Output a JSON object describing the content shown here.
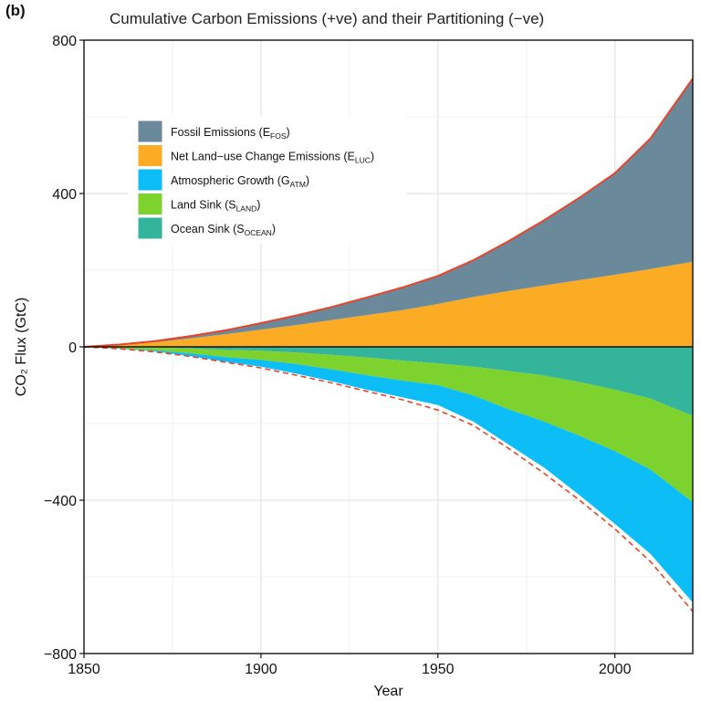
{
  "panel_label": "(b)",
  "chart_data": {
    "type": "area",
    "title": "Cumulative Carbon Emissions (+ve) and their Partitioning (−ve)",
    "xlabel": "Year",
    "ylabel": "CO₂ Flux (GtC)",
    "xlim": [
      1850,
      2022
    ],
    "ylim": [
      -800,
      800
    ],
    "x_ticks": [
      1850,
      1900,
      1950,
      2000
    ],
    "y_ticks": [
      -800,
      -400,
      0,
      400,
      800
    ],
    "y_tick_labels": [
      "−800",
      "−400",
      "0",
      "400",
      "800"
    ],
    "grid": true,
    "legend_position": "top-left",
    "x": [
      1850,
      1860,
      1870,
      1880,
      1890,
      1900,
      1910,
      1920,
      1930,
      1940,
      1950,
      1960,
      1970,
      1980,
      1990,
      2000,
      2010,
      2022
    ],
    "series": [
      {
        "name": "Fossil Emissions (E",
        "sub": "FOS",
        "suffix": ")",
        "color": "#6a8a9c",
        "side": "positive",
        "values": [
          0,
          1,
          3,
          6,
          10,
          17,
          25,
          34,
          46,
          59,
          73,
          96,
          130,
          170,
          215,
          265,
          340,
          478
        ]
      },
      {
        "name": "Net Land−use Change Emissions (E",
        "sub": "LUC",
        "suffix": ")",
        "color": "#fbab24",
        "side": "positive",
        "values": [
          0,
          5,
          12,
          22,
          33,
          45,
          57,
          70,
          83,
          96,
          112,
          130,
          146,
          160,
          174,
          188,
          203,
          222
        ]
      },
      {
        "name": "Atmospheric Growth (G",
        "sub": "ATM",
        "suffix": ")",
        "color": "#0cbdf6",
        "side": "negative",
        "values": [
          0,
          -1,
          -3,
          -7,
          -12,
          -18,
          -25,
          -31,
          -38,
          -44,
          -52,
          -68,
          -92,
          -120,
          -155,
          -190,
          -220,
          -262
        ]
      },
      {
        "name": "Land Sink (S",
        "sub": "LAND",
        "suffix": ")",
        "color": "#7ed22e",
        "side": "negative",
        "values": [
          0,
          -3,
          -7,
          -13,
          -19,
          -24,
          -30,
          -38,
          -46,
          -52,
          -57,
          -75,
          -100,
          -120,
          -140,
          -160,
          -185,
          -225
        ]
      },
      {
        "name": "Ocean Sink (S",
        "sub": "OCEAN",
        "suffix": ")",
        "color": "#35b49c",
        "side": "negative",
        "values": [
          0,
          -1,
          -2,
          -4,
          -8,
          -10,
          -15,
          -21,
          -28,
          -36,
          -43,
          -52,
          -63,
          -75,
          -92,
          -112,
          -135,
          -180
        ]
      }
    ],
    "total_emissions_line": {
      "color": "#e8442a",
      "style": "solid"
    },
    "total_sinks_line": {
      "color": "#e8442a",
      "style": "dashed",
      "values": [
        0,
        -5,
        -13,
        -25,
        -40,
        -55,
        -74,
        -94,
        -116,
        -138,
        -165,
        -205,
        -265,
        -330,
        -400,
        -475,
        -560,
        -690
      ]
    }
  }
}
